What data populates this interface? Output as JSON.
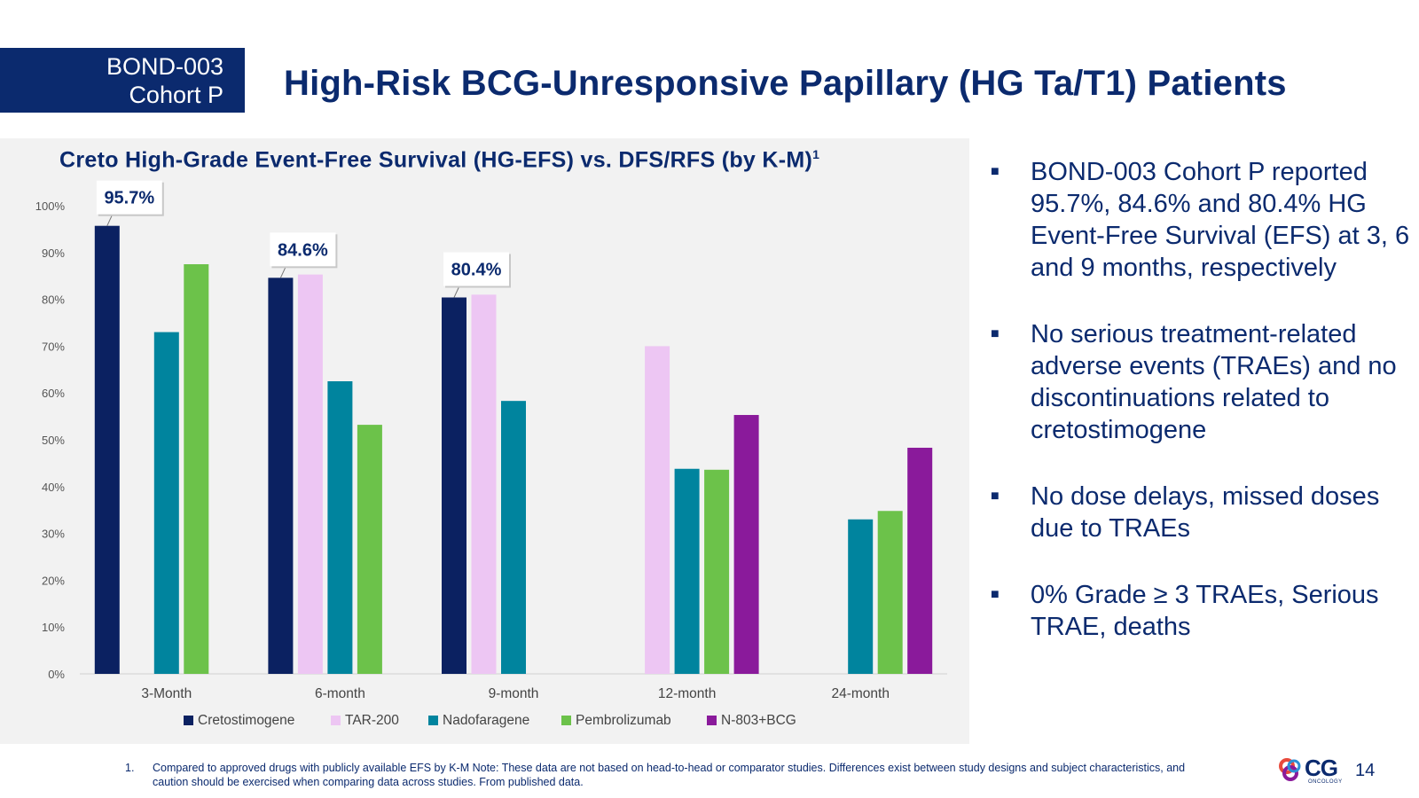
{
  "header": {
    "cohort_line1": "BOND-003",
    "cohort_line2": "Cohort P",
    "title": "High-Risk BCG-Unresponsive Papillary (HG Ta/T1) Patients"
  },
  "chart_title": "Creto High-Grade Event-Free Survival (HG-EFS) vs. DFS/RFS (by K-M)",
  "chart_title_sup": "1",
  "chart_data": {
    "type": "bar",
    "title": "Creto High-Grade Event-Free Survival (HG-EFS) vs. DFS/RFS (by K-M)",
    "categories": [
      "3-Month",
      "6-month",
      "9-month",
      "12-month",
      "24-month"
    ],
    "ylim": [
      0,
      100
    ],
    "y_ticks": [
      0,
      10,
      20,
      30,
      40,
      50,
      60,
      70,
      80,
      90,
      100
    ],
    "y_tick_labels": [
      "0%",
      "10%",
      "20%",
      "30%",
      "40%",
      "50%",
      "60%",
      "70%",
      "80%",
      "90%",
      "100%"
    ],
    "grid": false,
    "legend_position": "bottom",
    "series": [
      {
        "name": "Cretostimogene",
        "color": "#0b2161",
        "values": [
          95.7,
          84.6,
          80.4,
          null,
          null
        ]
      },
      {
        "name": "TAR-200",
        "color": "#edc6f3",
        "values": [
          null,
          85.3,
          81.0,
          70.0,
          null
        ]
      },
      {
        "name": "Nadofaragene",
        "color": "#00849e",
        "values": [
          73.0,
          62.5,
          58.3,
          43.8,
          33.0
        ]
      },
      {
        "name": "Pembrolizumab",
        "color": "#6cc24a",
        "values": [
          87.5,
          53.2,
          null,
          43.6,
          34.8
        ]
      },
      {
        "name": "N-803+BCG",
        "color": "#8a1a9b",
        "values": [
          null,
          null,
          null,
          55.3,
          48.3
        ]
      }
    ],
    "annotations": [
      {
        "text": "95.7%",
        "category": "3-Month",
        "series": "Cretostimogene",
        "value": 95.7
      },
      {
        "text": "84.6%",
        "category": "6-month",
        "series": "Cretostimogene",
        "value": 84.6
      },
      {
        "text": "80.4%",
        "category": "9-month",
        "series": "Cretostimogene",
        "value": 80.4
      }
    ]
  },
  "bullets": [
    "BOND-003 Cohort P reported 95.7%, 84.6% and 80.4% HG Event-Free Survival (EFS) at 3, 6 and 9 months, respectively",
    "No serious treatment-related adverse events (TRAEs) and no discontinuations related to cretostimogene",
    "No dose delays, missed doses due to TRAEs",
    "0% Grade ≥ 3 TRAEs, Serious TRAE, deaths"
  ],
  "bullet_marker": "■",
  "footnote": {
    "number": "1.",
    "text": "Compared to approved drugs with publicly available EFS by K-M   Note: These data are not based on head-to-head or comparator studies. Differences exist between study designs and subject characteristics, and caution should be exercised when comparing data across studies. From published data."
  },
  "logo": {
    "text": "CG",
    "subtext": "ONCOLOGY"
  },
  "page_number": "14"
}
